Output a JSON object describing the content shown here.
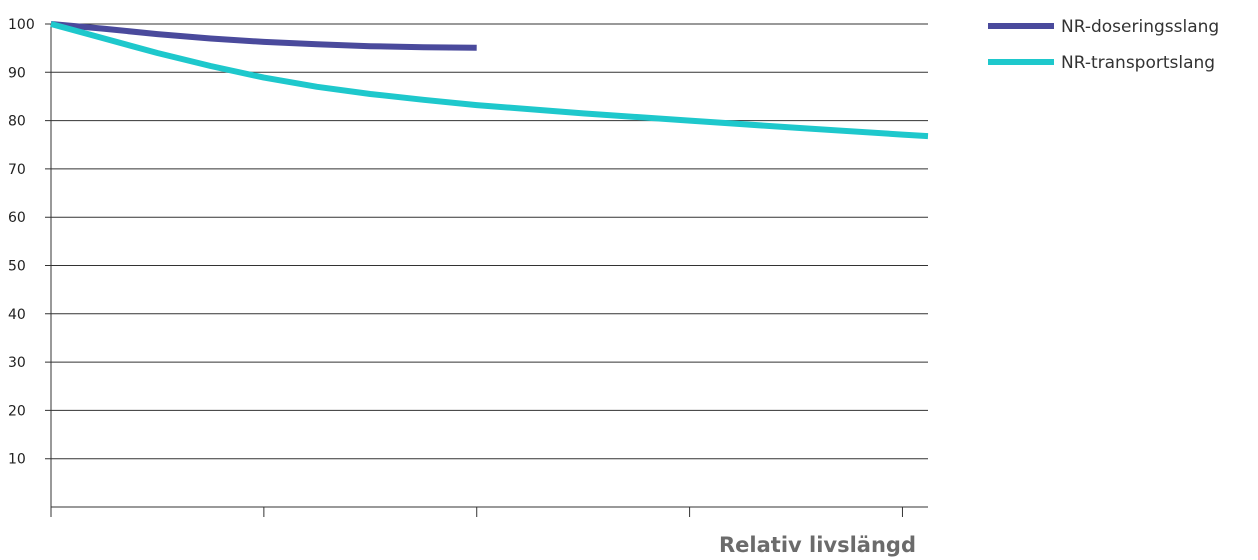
{
  "chart_data": {
    "type": "line",
    "title": "",
    "xlabel": "Relativ livslängd",
    "ylabel": "",
    "xlim": [
      0,
      4.12
    ],
    "ylim": [
      0,
      100
    ],
    "yticks": [
      10,
      20,
      30,
      40,
      50,
      60,
      70,
      80,
      90,
      100
    ],
    "xticks": [
      0,
      1,
      2,
      3,
      4
    ],
    "grid": "horizontal",
    "legend_position": "top-right",
    "series": [
      {
        "name": "NR-doseringsslang",
        "color": "#4a4a9c",
        "x": [
          0,
          0.25,
          0.5,
          0.75,
          1.0,
          1.25,
          1.5,
          1.75,
          2.0
        ],
        "y": [
          100,
          99.0,
          97.9,
          97.0,
          96.3,
          95.8,
          95.4,
          95.2,
          95.1
        ]
      },
      {
        "name": "NR-transportslang",
        "color": "#1ec8cc",
        "x": [
          0,
          0.25,
          0.5,
          0.75,
          1.0,
          1.25,
          1.5,
          1.75,
          2.0,
          2.5,
          3.0,
          3.5,
          4.0,
          4.12
        ],
        "y": [
          100,
          97.0,
          94.0,
          91.3,
          88.9,
          87.0,
          85.5,
          84.3,
          83.2,
          81.5,
          80.0,
          78.5,
          77.1,
          76.8
        ]
      }
    ]
  }
}
